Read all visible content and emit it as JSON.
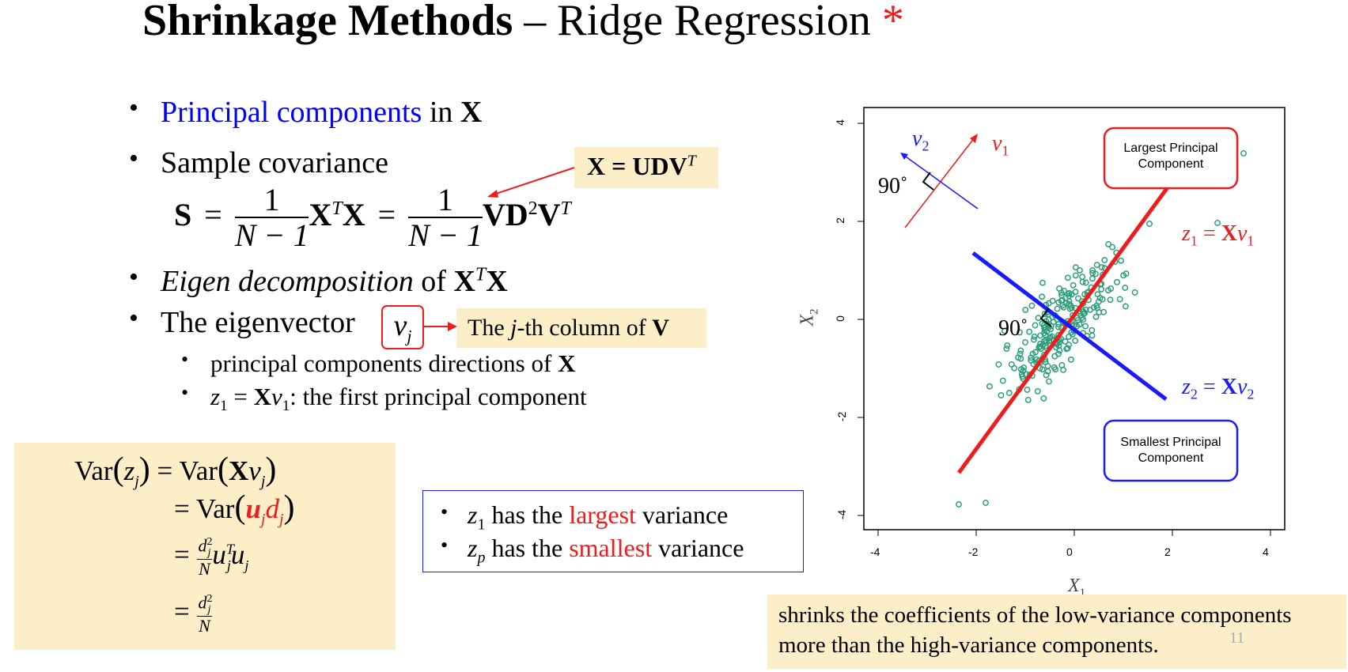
{
  "title": {
    "bold": "Shrinkage Methods",
    "dash": " – ",
    "rest": "Ridge Regression",
    "star": "*"
  },
  "bullets": {
    "b1": {
      "blue": "Principal components",
      "mid": " in ",
      "bold": "X"
    },
    "b2": {
      "text": "Sample covariance"
    },
    "b3": {
      "italic": "Eigen decomposition",
      "mid": " of ",
      "bold": "X",
      "sup": "T",
      "bold2": "X"
    },
    "b4": {
      "text": "The eigenvector",
      "sym": "v",
      "sub": "j"
    },
    "s1": {
      "text": "principal components directions of ",
      "bold": "X"
    },
    "s2": {
      "z": "z",
      "zsub": "1",
      "eq": " = ",
      "bold": "X",
      "v": "v",
      "vsub": "1",
      "rest": ": the first principal component"
    }
  },
  "svd_box": {
    "lhs": "X",
    "eq": " = ",
    "rhs": "UDV",
    "sup": "T"
  },
  "column_box": {
    "pre": "The ",
    "j": "j",
    "mid": "-th column of ",
    "bold": "V"
  },
  "formula": {
    "S": "S",
    "eq": "=",
    "one": "1",
    "den": "N − 1",
    "XT": "X",
    "T": "T",
    "X": "X",
    "eq2": "=",
    "one2": "1",
    "den2": "N − 1",
    "VD": "VD",
    "two": "2",
    "V": "V",
    "T2": "T"
  },
  "var_box": {
    "l1_var": "Var",
    "l1_z": "z",
    "l1_zsub": "j",
    "l1_eq": " = Var",
    "l1_X": "X",
    "l1_v": "v",
    "l1_vsub": "j",
    "l2_eq": "= Var",
    "l2_u": "u",
    "l2_usub": "j",
    "l2_d": "d",
    "l2_dsub": "j",
    "l3_eq": "=",
    "l3_num": "d",
    "l3_numsup": "2",
    "l3_numsub": "j",
    "l3_den": "N",
    "l3_u": "u",
    "l3_usup": "T",
    "l3_usub": "j",
    "l3_u2": "u",
    "l3_u2sub": "j",
    "l4_eq": "=",
    "l4_num": "d",
    "l4_numsup": "2",
    "l4_numsub": "j",
    "l4_den": "N"
  },
  "variance_box": {
    "i1": {
      "z": "z",
      "sub": "1",
      "pre": " has the ",
      "hl": "largest",
      "post": " variance"
    },
    "i2": {
      "z": "z",
      "sub": "p",
      "pre": " has the ",
      "hl": "smallest",
      "post": " variance"
    }
  },
  "plot": {
    "x_ticks": [
      "-4",
      "-2",
      "0",
      "2",
      "4"
    ],
    "y_ticks": [
      "-4",
      "-2",
      "0",
      "2",
      "4"
    ],
    "xlabel": "X",
    "xlabel_sub": "1",
    "ylabel": "X",
    "ylabel_sub": "2",
    "largest_label": "Largest Principal Component",
    "smallest_label": "Smallest Principal Component",
    "z1": {
      "z": "z",
      "sub": "1",
      "eq": " = ",
      "X": "X",
      "v": "v",
      "vsub": "1"
    },
    "z2": {
      "z": "z",
      "sub": "2",
      "eq": " = ",
      "X": "X",
      "v": "v",
      "vsub": "2"
    },
    "v1": "v",
    "v1sub": "1",
    "v2": "v",
    "v2sub": "2",
    "angle_top": "90˚",
    "angle_mid": "90˚",
    "colors": {
      "points": "#2e9e7a",
      "pc1": "#ee1c1c",
      "pc2": "#1a1aff"
    }
  },
  "bottom_note": "shrinks the coefficients of the low-variance components more than the high-variance components.",
  "page_number": "11"
}
